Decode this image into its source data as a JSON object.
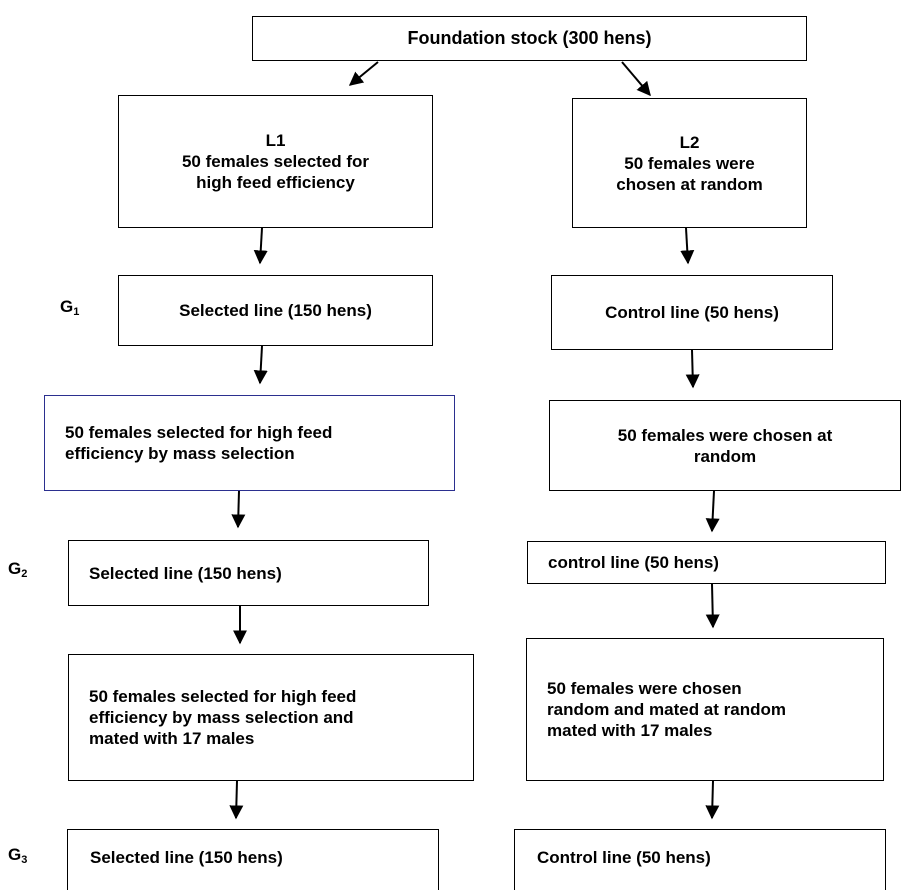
{
  "foundation": "Foundation stock (300 hens)",
  "left": {
    "l1": {
      "title": "L1",
      "line1": "50 females selected for",
      "line2": "high feed efficiency"
    },
    "g1": "Selected line (150 hens)",
    "sel1": {
      "line1": "50 females selected for high feed",
      "line2": "efficiency by mass selection"
    },
    "g2": "Selected line (150 hens)",
    "sel2": {
      "line1": "50 females selected for high feed",
      "line2": "efficiency by mass selection and",
      "line3": "mated with 17 males"
    },
    "g3": "Selected line (150 hens)"
  },
  "right": {
    "l2": {
      "title": "L2",
      "line1": "50 females were",
      "line2": "chosen at random"
    },
    "g1": "Control line (50 hens)",
    "sel1": {
      "line1": "50 females were chosen at",
      "line2": "random"
    },
    "g2": "control line (50 hens)",
    "sel2": {
      "line1": "50 females were chosen",
      "line2": "random and mated at random",
      "line3": "mated with 17 males"
    },
    "g3": "Control line (50 hens)"
  },
  "generations": {
    "g1": {
      "letter": "G",
      "sub": "1"
    },
    "g2": {
      "letter": "G",
      "sub": "2"
    },
    "g3": {
      "letter": "G",
      "sub": "3"
    }
  }
}
